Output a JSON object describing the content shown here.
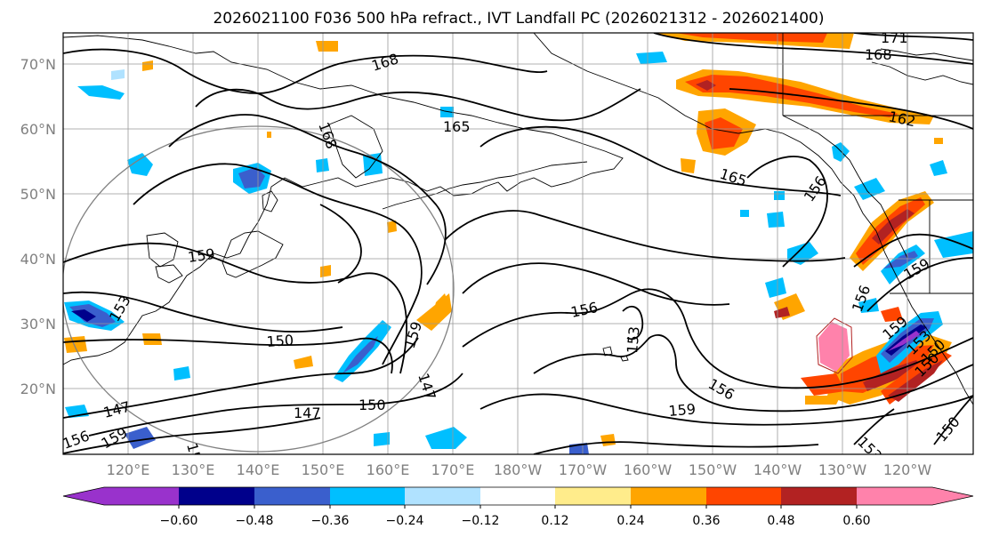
{
  "title": "2026021100 F036 500 hPa refract., IVT Landfall PC (2026021312 - 2026021400)",
  "lat_labels": [
    "70°N",
    "60°N",
    "50°N",
    "40°N",
    "30°N",
    "20°N"
  ],
  "lon_labels": [
    "120°E",
    "130°E",
    "140°E",
    "150°E",
    "160°E",
    "170°E",
    "180°W",
    "170°W",
    "160°W",
    "150°W",
    "140°W",
    "130°W",
    "120°W"
  ],
  "colorbar": {
    "tick_labels": [
      "−0.60",
      "−0.48",
      "−0.36",
      "−0.24",
      "−0.12",
      "0.12",
      "0.24",
      "0.36",
      "0.48",
      "0.60"
    ],
    "colors": [
      "#9932cc",
      "#00008b",
      "#3a5fcd",
      "#00bfff",
      "#b0e2ff",
      "#ffffff",
      "#ffec8b",
      "#ffa500",
      "#ff4500",
      "#b22222",
      "#ff82ab"
    ]
  },
  "contour_labels": [
    "168",
    "165",
    "168",
    "171",
    "168",
    "162",
    "165",
    "156",
    "159",
    "153",
    "150",
    "159",
    "147",
    "150",
    "147",
    "156",
    "153",
    "156",
    "159",
    "150",
    "153",
    "147",
    "159",
    "153",
    "156",
    "159",
    "159",
    "156",
    "153",
    "150",
    "150"
  ],
  "shading_colors": {
    "orange": "#ffa500",
    "red": "#ff4500",
    "darkred": "#b22222",
    "pink": "#ff82ab",
    "yellow": "#ffec8b",
    "lightblue": "#b0e2ff",
    "skyblue": "#00bfff",
    "blue": "#3a5fcd",
    "navy": "#00008b",
    "purple": "#9932cc"
  }
}
